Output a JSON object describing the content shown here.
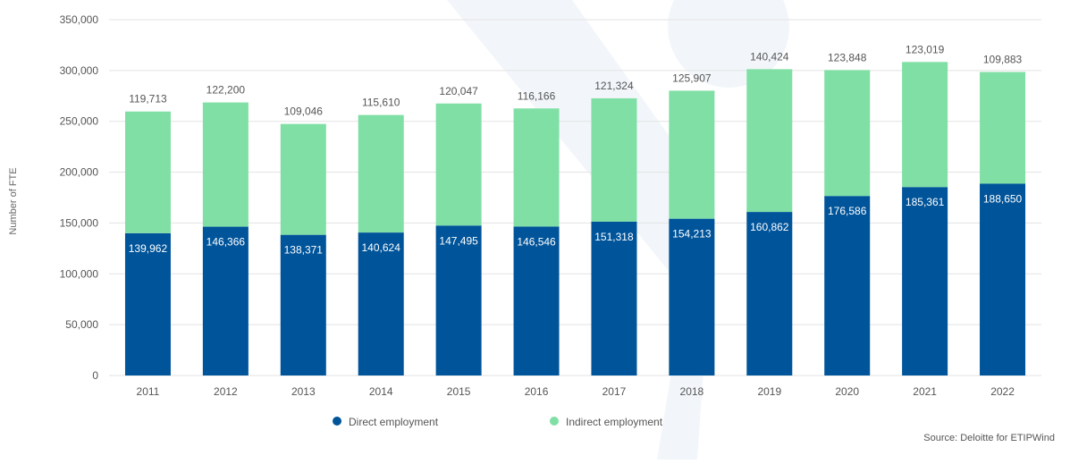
{
  "chart_data": {
    "type": "bar",
    "stacked": true,
    "categories": [
      "2011",
      "2012",
      "2013",
      "2014",
      "2015",
      "2016",
      "2017",
      "2018",
      "2019",
      "2020",
      "2021",
      "2022"
    ],
    "series": [
      {
        "name": "Direct employment",
        "color": "#00549a",
        "values": [
          139962,
          146366,
          138371,
          140624,
          147495,
          146546,
          151318,
          154213,
          160862,
          176586,
          185361,
          188650
        ],
        "labels": [
          "139,962",
          "146,366",
          "138,371",
          "140,624",
          "147,495",
          "146,546",
          "151,318",
          "154,213",
          "160,862",
          "176,586",
          "185,361",
          "188,650"
        ]
      },
      {
        "name": "Indirect employment",
        "color": "#80dfa5",
        "values": [
          119713,
          122200,
          109046,
          115610,
          120047,
          116166,
          121324,
          125907,
          140424,
          123848,
          123019,
          109883
        ],
        "labels": [
          "119,713",
          "122,200",
          "109,046",
          "115,610",
          "120,047",
          "116,166",
          "121,324",
          "125,907",
          "140,424",
          "123,848",
          "123,019",
          "109,883"
        ]
      }
    ],
    "ylabel": "Number of FTE",
    "xlabel": "",
    "ylim": [
      0,
      350000
    ],
    "yticks": [
      0,
      50000,
      100000,
      150000,
      200000,
      250000,
      300000,
      350000
    ],
    "ytick_labels": [
      "0",
      "50,000",
      "100,000",
      "150,000",
      "200,000",
      "250,000",
      "300,000",
      "350,000"
    ],
    "grid": true,
    "legend_position": "bottom-center"
  },
  "source": "Source: Deloitte for ETIPWind"
}
